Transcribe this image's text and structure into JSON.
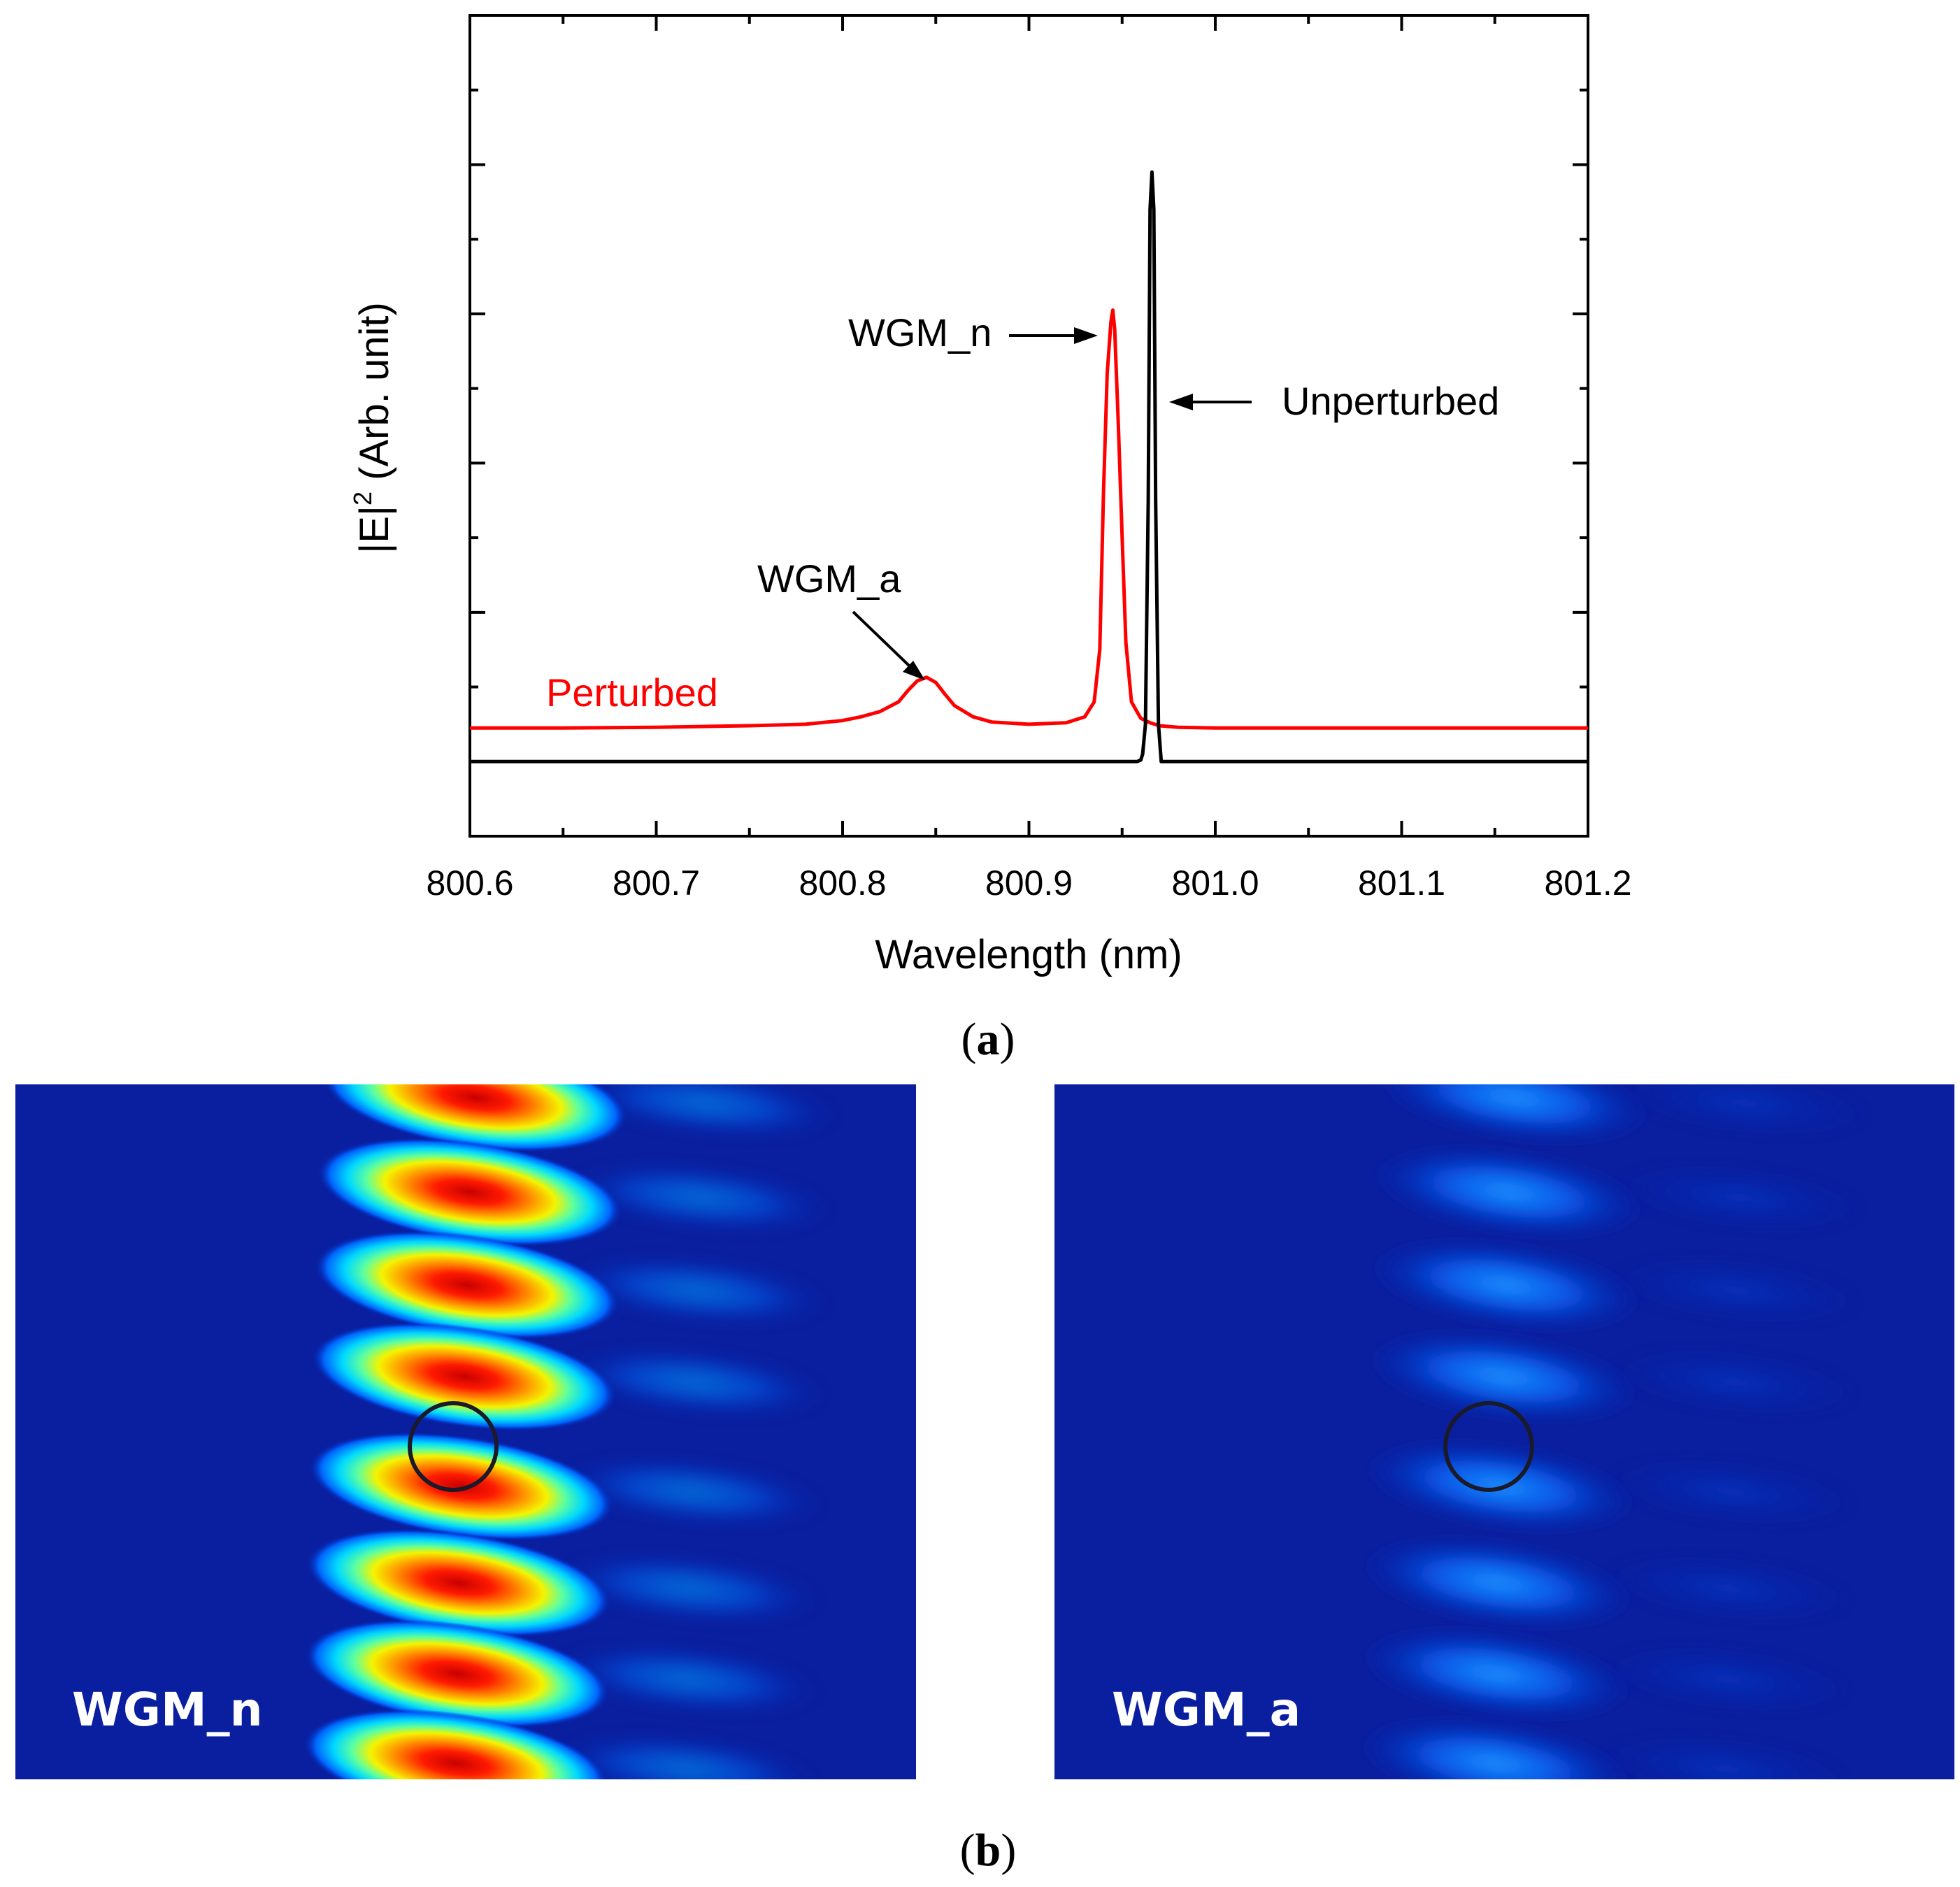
{
  "chart_data": {
    "type": "line",
    "title": "",
    "xlabel": "Wavelength (nm)",
    "ylabel_main": "|E|",
    "ylabel_sup": "2",
    "ylabel_rest": " (Arb. unit)",
    "xlim": [
      800.6,
      801.2
    ],
    "ylim": [
      -0.1,
      1.0
    ],
    "xticks": [
      800.6,
      800.7,
      800.8,
      800.9,
      801.0,
      801.1,
      801.2
    ],
    "xtick_labels": [
      "800.6",
      "800.7",
      "800.8",
      "800.9",
      "801.0",
      "801.1",
      "801.2"
    ],
    "y_major_ticks": [
      0.0,
      0.2,
      0.4,
      0.6,
      0.8,
      1.0
    ],
    "y_minor_ticks": [
      -0.1,
      0.1,
      0.3,
      0.5,
      0.7,
      0.9
    ],
    "grid": false,
    "series": [
      {
        "name": "Perturbed",
        "color": "#ff0000",
        "x": [
          800.6,
          800.65,
          800.7,
          800.75,
          800.78,
          800.8,
          800.81,
          800.82,
          800.83,
          800.835,
          800.84,
          800.845,
          800.85,
          800.855,
          800.86,
          800.87,
          800.88,
          800.9,
          800.92,
          800.93,
          800.935,
          800.938,
          800.94,
          800.942,
          800.944,
          800.945,
          800.946,
          800.948,
          800.95,
          800.952,
          800.955,
          800.96,
          800.965,
          800.97,
          800.98,
          801.0,
          801.05,
          801.1,
          801.15,
          801.2
        ],
        "y": [
          0.045,
          0.045,
          0.046,
          0.048,
          0.05,
          0.055,
          0.06,
          0.067,
          0.08,
          0.095,
          0.108,
          0.113,
          0.106,
          0.09,
          0.075,
          0.06,
          0.053,
          0.05,
          0.052,
          0.06,
          0.08,
          0.15,
          0.36,
          0.52,
          0.59,
          0.605,
          0.58,
          0.45,
          0.3,
          0.16,
          0.08,
          0.058,
          0.052,
          0.048,
          0.046,
          0.045,
          0.045,
          0.045,
          0.045,
          0.045
        ]
      },
      {
        "name": "Unperturbed",
        "color": "#000000",
        "x": [
          800.6,
          800.9,
          800.95,
          800.958,
          800.96,
          800.961,
          800.9625,
          800.964,
          800.965,
          800.966,
          800.967,
          800.968,
          800.9695,
          800.971,
          800.975,
          801.0,
          801.2
        ],
        "y": [
          0.0,
          0.0,
          0.0,
          0.0,
          0.002,
          0.01,
          0.05,
          0.35,
          0.74,
          0.79,
          0.74,
          0.35,
          0.05,
          0.0,
          0.0,
          0.0,
          0.0
        ]
      }
    ],
    "annotations": [
      {
        "text": "WGM_n",
        "arrow_to": [
          800.943,
          0.57
        ]
      },
      {
        "text": "Unperturbed",
        "arrow_to": [
          800.969,
          0.48
        ]
      },
      {
        "text": "WGM_a",
        "arrow_to": [
          800.843,
          0.113
        ]
      },
      {
        "text": "Perturbed",
        "series_label": true
      }
    ]
  },
  "caption_a": {
    "open": "(",
    "letter": "a",
    "close": ")"
  },
  "caption_b": {
    "open": "(",
    "letter": "b",
    "close": ")"
  },
  "field_maps": [
    {
      "label": "WGM_n",
      "intensity": 1.0
    },
    {
      "label": "WGM_a",
      "intensity": 0.22
    }
  ]
}
